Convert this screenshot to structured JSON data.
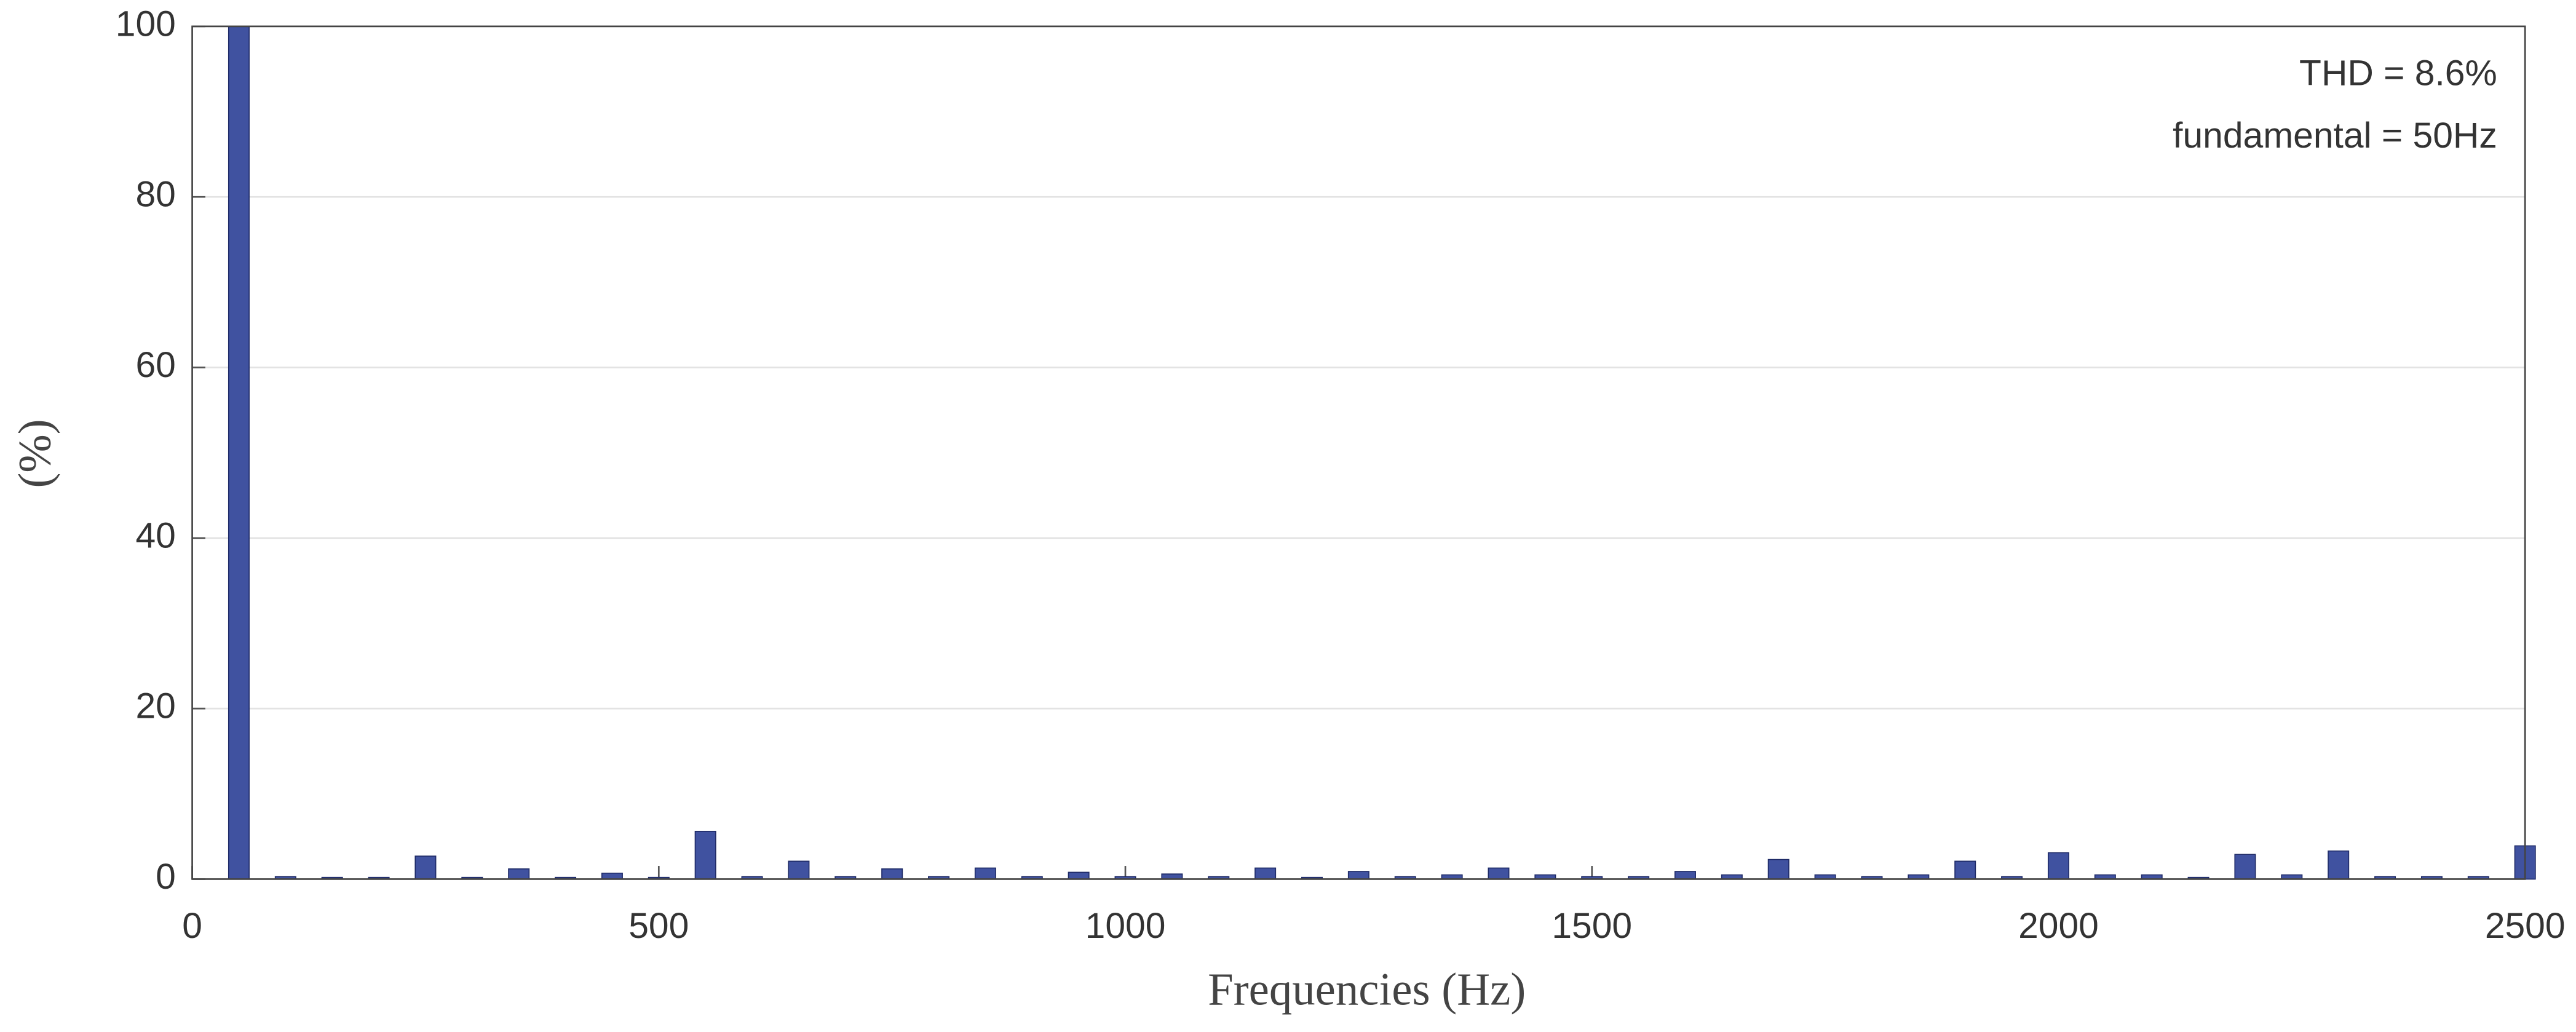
{
  "chart_data": {
    "type": "bar",
    "xlabel": "Frequencies (Hz)",
    "ylabel": "(%)",
    "annotations": [
      "THD = 8.6%",
      "fundamental = 50Hz"
    ],
    "x": [
      50,
      100,
      150,
      200,
      250,
      300,
      350,
      400,
      450,
      500,
      550,
      600,
      650,
      700,
      750,
      800,
      850,
      900,
      950,
      1000,
      1050,
      1100,
      1150,
      1200,
      1250,
      1300,
      1350,
      1400,
      1450,
      1500,
      1550,
      1600,
      1650,
      1700,
      1750,
      1800,
      1850,
      1900,
      1950,
      2000,
      2050,
      2100,
      2150,
      2200,
      2250,
      2300,
      2350,
      2400,
      2450,
      2500
    ],
    "values": [
      100,
      0.3,
      0.2,
      0.2,
      2.7,
      0.2,
      1.2,
      0.2,
      0.7,
      0.2,
      5.6,
      0.3,
      2.1,
      0.3,
      1.2,
      0.3,
      1.3,
      0.3,
      0.8,
      0.3,
      0.6,
      0.3,
      1.3,
      0.2,
      0.9,
      0.3,
      0.5,
      1.3,
      0.5,
      0.3,
      0.3,
      0.9,
      0.5,
      2.3,
      0.5,
      0.3,
      0.5,
      2.1,
      0.3,
      3.1,
      0.5,
      0.5,
      0.2,
      2.9,
      0.5,
      3.3,
      0.3,
      0.3,
      0.3,
      3.9
    ],
    "color": "#4052a0",
    "xlim": [
      0,
      2500
    ],
    "xticks": [
      0,
      500,
      1000,
      1500,
      2000,
      2500
    ],
    "ylim": [
      0,
      100
    ],
    "yticks": [
      0,
      20,
      40,
      60,
      80,
      100
    ],
    "grid": true
  }
}
